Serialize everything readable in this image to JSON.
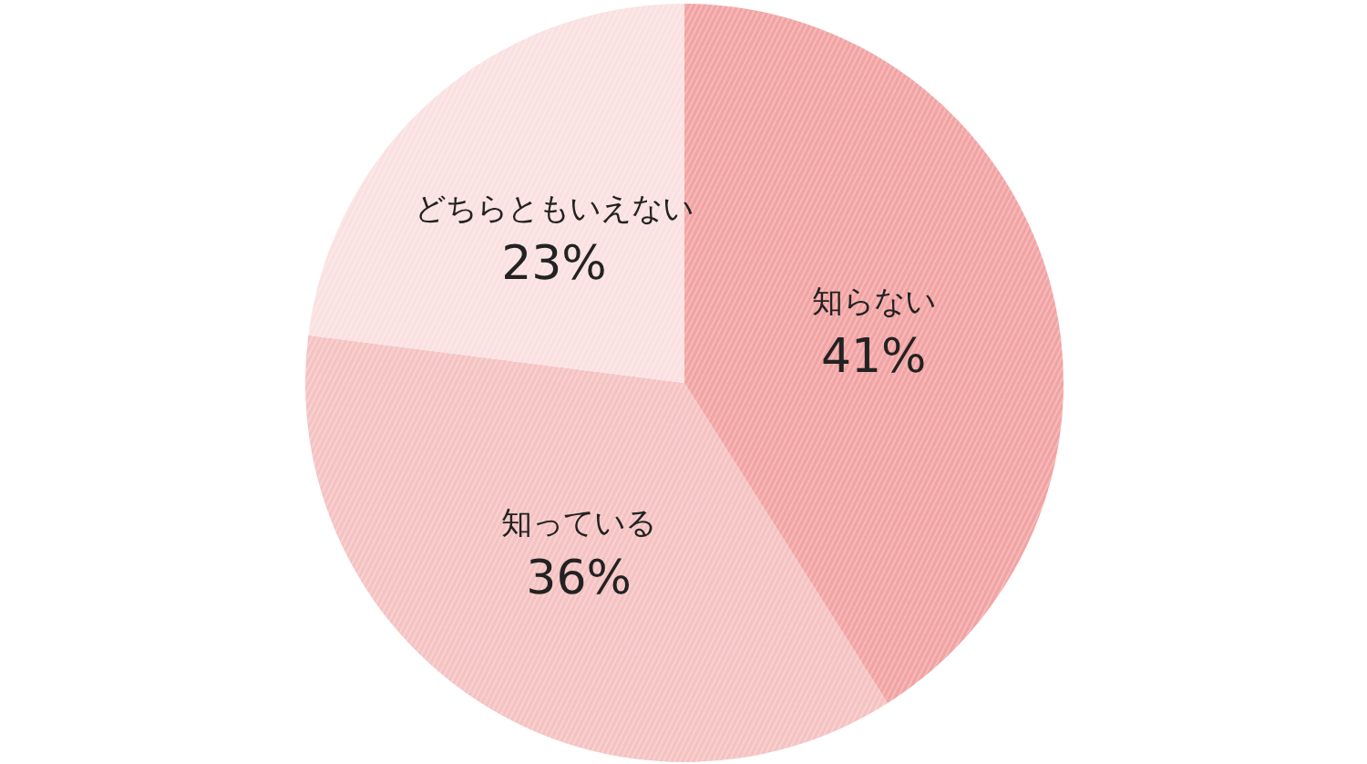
{
  "chart_data": {
    "type": "pie",
    "categories": [
      "知らない",
      "知っている",
      "どちらともいえない"
    ],
    "values": [
      41,
      36,
      23
    ],
    "colors": [
      "#f2a3a3",
      "#f5c2c2",
      "#fae0e0"
    ],
    "value_labels": [
      "41%",
      "36%",
      "23%"
    ]
  }
}
